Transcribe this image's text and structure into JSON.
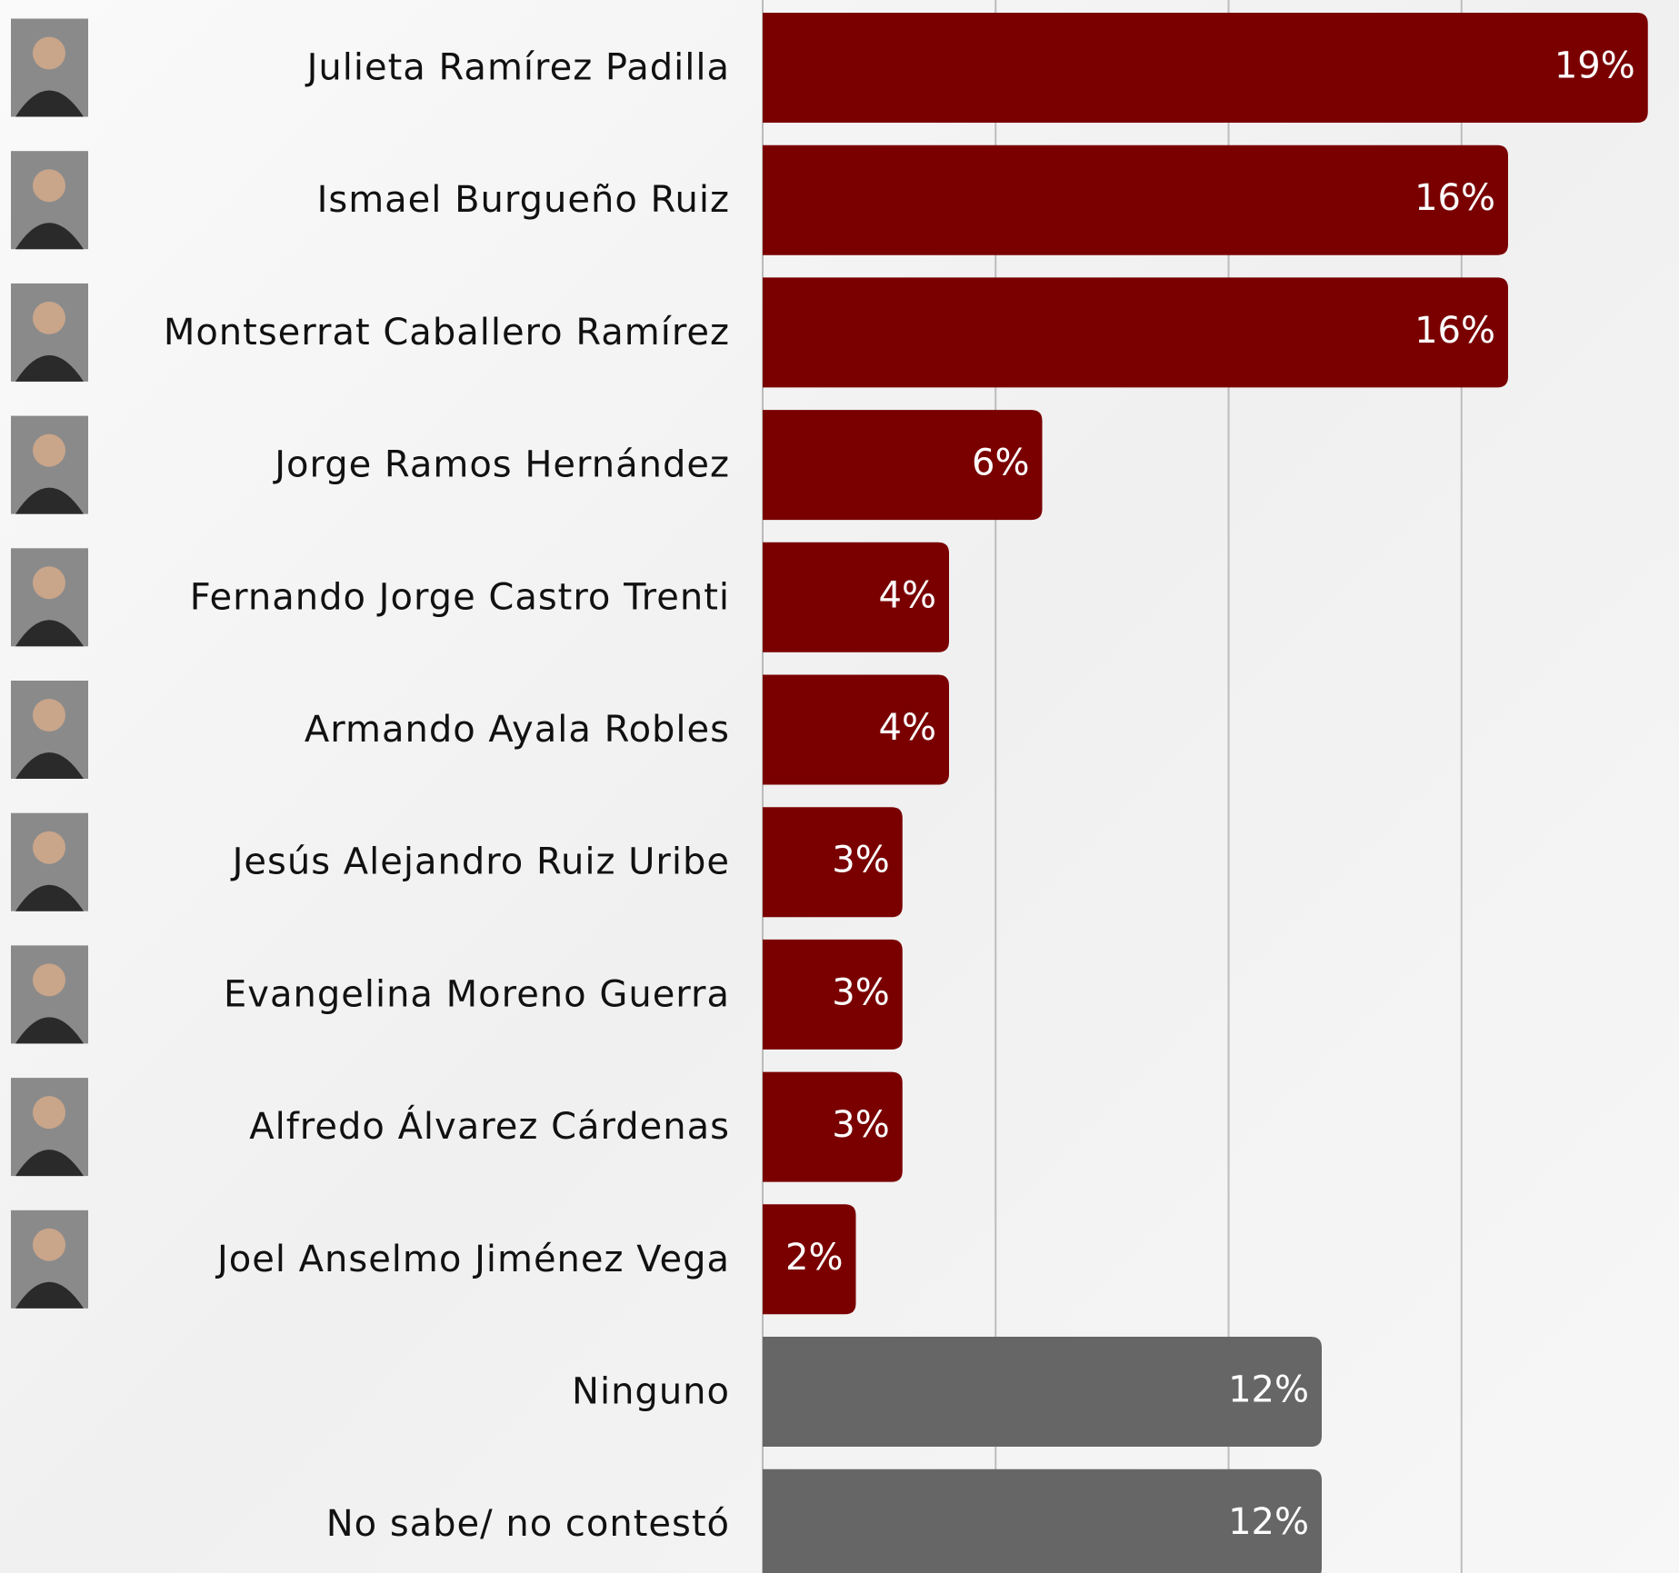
{
  "chart_data": {
    "type": "bar",
    "orientation": "horizontal",
    "categories": [
      "Julieta Ramírez Padilla",
      "Ismael Burgueño Ruiz",
      "Montserrat Caballero Ramírez",
      "Jorge Ramos Hernández",
      "Fernando Jorge Castro Trenti",
      "Armando Ayala Robles",
      "Jesús Alejandro Ruiz Uribe",
      "Evangelina Moreno Guerra",
      "Alfredo Álvarez Cárdenas",
      "Joel Anselmo Jiménez Vega",
      "Ninguno",
      "No sabe/ no contestó"
    ],
    "values": [
      19,
      16,
      16,
      6,
      4,
      4,
      3,
      3,
      3,
      2,
      12,
      12
    ],
    "value_labels": [
      "19%",
      "16%",
      "16%",
      "6%",
      "4%",
      "4%",
      "3%",
      "3%",
      "3%",
      "2%",
      "12%",
      "12%"
    ],
    "colors": [
      "#7a0000",
      "#7a0000",
      "#7a0000",
      "#7a0000",
      "#7a0000",
      "#7a0000",
      "#7a0000",
      "#7a0000",
      "#7a0000",
      "#7a0000",
      "#666666",
      "#666666"
    ],
    "xlim": [
      0,
      20
    ],
    "xticks": [
      5,
      10,
      15
    ],
    "grid": true
  }
}
